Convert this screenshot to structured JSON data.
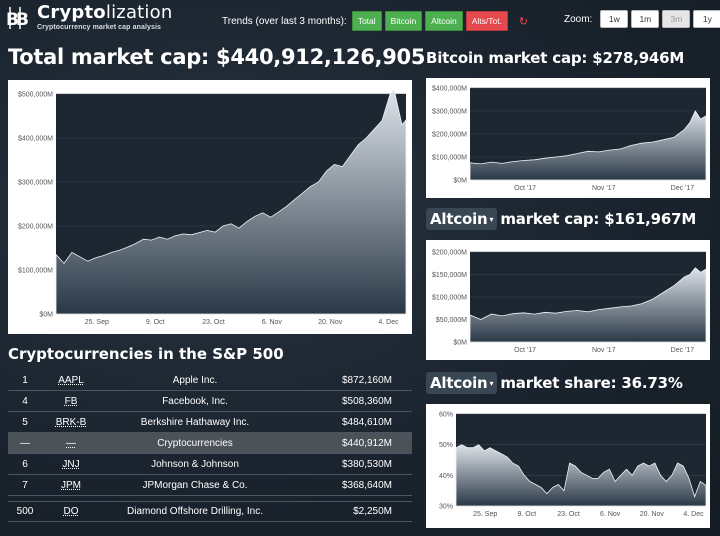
{
  "app": {
    "title_bold": "Crypto",
    "title_rest": "lization",
    "subtitle": "Cryptocurrency market cap analysis"
  },
  "trends": {
    "label": "Trends (over last 3 months):",
    "buttons": [
      "Total",
      "Bitcoin",
      "Altcoin",
      "Alts/Tot."
    ],
    "colors": {
      "green": "#4caf50",
      "red": "#e5484d"
    }
  },
  "zoom": {
    "label": "Zoom:",
    "options": [
      "1w",
      "1m",
      "3m",
      "1y"
    ],
    "selected": "3m"
  },
  "total": {
    "heading": "Total market cap: $440,912,126,905"
  },
  "bitcoin": {
    "heading": "Bitcoin market cap: $278,946M"
  },
  "altcoin_cap": {
    "select": "Altcoin",
    "heading": "market cap: $161,967M"
  },
  "altcoin_share": {
    "select": "Altcoin",
    "heading": "market share: 36.73%"
  },
  "sp500": {
    "title": "Cryptocurrencies in the S&P 500",
    "rows": [
      {
        "rank": "1",
        "ticker": "AAPL",
        "name": "Apple Inc.",
        "cap": "$872,160M"
      },
      {
        "rank": "4",
        "ticker": "FB",
        "name": "Facebook, Inc.",
        "cap": "$508,360M"
      },
      {
        "rank": "5",
        "ticker": "BRK-B",
        "name": "Berkshire Hathaway Inc.",
        "cap": "$484,610M"
      },
      {
        "rank": "—",
        "ticker": "—",
        "name": "Cryptocurrencies",
        "cap": "$440,912M"
      },
      {
        "rank": "6",
        "ticker": "JNJ",
        "name": "Johnson & Johnson",
        "cap": "$380,530M"
      },
      {
        "rank": "7",
        "ticker": "JPM",
        "name": "JPMorgan Chase & Co.",
        "cap": "$368,640M"
      },
      {
        "rank": "500",
        "ticker": "DO",
        "name": "Diamond Offshore Drilling, Inc.",
        "cap": "$2,250M"
      }
    ]
  },
  "chart_data": [
    {
      "type": "area",
      "ylim": [
        0,
        500000
      ],
      "yticks": [
        "$0M",
        "$100,000M",
        "$200,000M",
        "$300,000M",
        "$400,000M",
        "$500,000M"
      ],
      "xticks": [
        "25. Sep",
        "9. Oct",
        "23. Oct",
        "6. Nov",
        "20. Nov",
        "4. Dec"
      ],
      "x": [
        0,
        2,
        4,
        6,
        8,
        10,
        12,
        14,
        16,
        18,
        20,
        22,
        24,
        26,
        28,
        30,
        32,
        34,
        36,
        38,
        40,
        42,
        44,
        46,
        48,
        50,
        52,
        54,
        56,
        58,
        60,
        62,
        64,
        66,
        68,
        70,
        72,
        74,
        76,
        78,
        80,
        82,
        84,
        85,
        86,
        87,
        88
      ],
      "values": [
        135000,
        115000,
        140000,
        130000,
        120000,
        128000,
        133000,
        140000,
        145000,
        152000,
        160000,
        170000,
        168000,
        175000,
        170000,
        178000,
        182000,
        180000,
        185000,
        190000,
        186000,
        200000,
        205000,
        195000,
        210000,
        222000,
        230000,
        220000,
        232000,
        245000,
        260000,
        275000,
        290000,
        300000,
        325000,
        340000,
        335000,
        360000,
        385000,
        400000,
        420000,
        440000,
        500000,
        510000,
        470000,
        430000,
        441000
      ],
      "xlim": [
        0,
        88
      ]
    },
    {
      "type": "area",
      "ylim": [
        0,
        400000
      ],
      "yticks": [
        "$0M",
        "$100,000M",
        "$200,000M",
        "$300,000M",
        "$400,000M"
      ],
      "xticks": [
        "Oct '17",
        "Nov '17",
        "Dec '17"
      ],
      "x": [
        0,
        4,
        8,
        12,
        16,
        20,
        24,
        28,
        32,
        36,
        40,
        44,
        48,
        52,
        56,
        60,
        64,
        68,
        72,
        76,
        80,
        82,
        84,
        86,
        88
      ],
      "values": [
        75000,
        70000,
        78000,
        72000,
        80000,
        85000,
        88000,
        95000,
        100000,
        105000,
        115000,
        125000,
        122000,
        130000,
        135000,
        150000,
        160000,
        165000,
        175000,
        185000,
        220000,
        250000,
        300000,
        265000,
        279000
      ],
      "xlim": [
        0,
        88
      ]
    },
    {
      "type": "area",
      "ylim": [
        0,
        200000
      ],
      "yticks": [
        "$0M",
        "$50,000M",
        "$100,000M",
        "$150,000M",
        "$200,000M"
      ],
      "xticks": [
        "Oct '17",
        "Nov '17",
        "Dec '17"
      ],
      "x": [
        0,
        4,
        8,
        12,
        16,
        20,
        24,
        28,
        32,
        36,
        40,
        44,
        48,
        52,
        56,
        60,
        64,
        68,
        72,
        76,
        80,
        82,
        84,
        86,
        88
      ],
      "values": [
        60000,
        50000,
        62000,
        58000,
        63000,
        65000,
        62000,
        66000,
        64000,
        68000,
        70000,
        67000,
        72000,
        75000,
        78000,
        80000,
        85000,
        95000,
        110000,
        125000,
        145000,
        150000,
        165000,
        155000,
        162000
      ],
      "xlim": [
        0,
        88
      ]
    },
    {
      "type": "area",
      "ylim": [
        30,
        60
      ],
      "yticks": [
        "30%",
        "40%",
        "50%",
        "60%"
      ],
      "xticks": [
        "25. Sep",
        "9. Oct",
        "23. Oct",
        "6. Nov",
        "20. Nov",
        "4. Dec"
      ],
      "x": [
        0,
        2,
        4,
        6,
        8,
        10,
        12,
        14,
        16,
        18,
        20,
        22,
        24,
        26,
        28,
        30,
        32,
        34,
        36,
        38,
        40,
        42,
        44,
        46,
        48,
        50,
        52,
        54,
        56,
        58,
        60,
        62,
        64,
        66,
        68,
        70,
        72,
        74,
        76,
        78,
        80,
        82,
        84,
        86,
        88
      ],
      "values": [
        49,
        50,
        49,
        49,
        50,
        48,
        49,
        48,
        47,
        46,
        44,
        43,
        40,
        38,
        37,
        36,
        34,
        36,
        37,
        35,
        44,
        43,
        41,
        40,
        39,
        39,
        41,
        42,
        38,
        40,
        42,
        40,
        43,
        44,
        43,
        44,
        40,
        38,
        40,
        44,
        43,
        39,
        33,
        38,
        36.73
      ],
      "xlim": [
        0,
        88
      ]
    }
  ]
}
